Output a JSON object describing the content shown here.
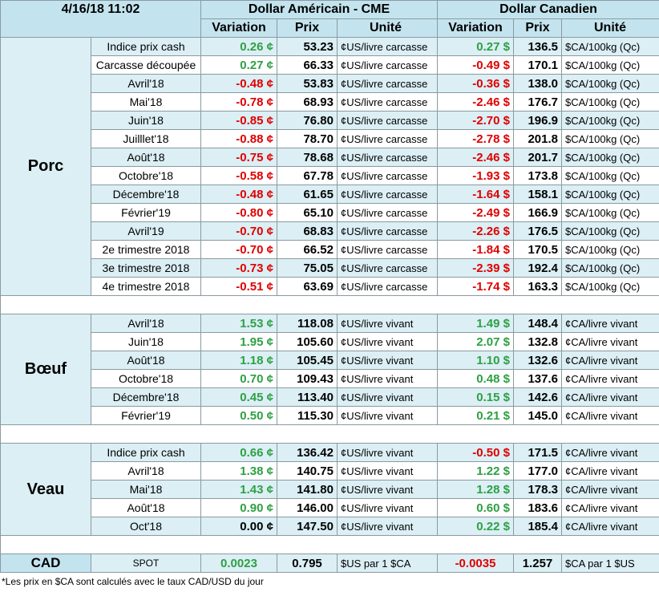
{
  "header": {
    "timestamp": "4/16/18 11:02",
    "us_title": "Dollar Américain - CME",
    "ca_title": "Dollar Canadien",
    "columns": [
      "Variation",
      "Prix",
      "Unité",
      "Variation",
      "Prix",
      "Unité"
    ]
  },
  "sections": [
    {
      "name": "Porc",
      "rows": [
        [
          "Indice prix cash",
          "0.26 ¢",
          "53.23",
          "¢US/livre carcasse",
          "0.27 $",
          "136.5",
          "$CA/100kg (Qc)"
        ],
        [
          "Carcasse découpée",
          "0.27 ¢",
          "66.33",
          "¢US/livre carcasse",
          "-0.49 $",
          "170.1",
          "$CA/100kg (Qc)"
        ],
        [
          "Avril'18",
          "-0.48 ¢",
          "53.83",
          "¢US/livre carcasse",
          "-0.36 $",
          "138.0",
          "$CA/100kg (Qc)"
        ],
        [
          "Mai'18",
          "-0.78 ¢",
          "68.93",
          "¢US/livre carcasse",
          "-2.46 $",
          "176.7",
          "$CA/100kg (Qc)"
        ],
        [
          "Juin'18",
          "-0.85 ¢",
          "76.80",
          "¢US/livre carcasse",
          "-2.70 $",
          "196.9",
          "$CA/100kg (Qc)"
        ],
        [
          "Juilllet'18",
          "-0.88 ¢",
          "78.70",
          "¢US/livre carcasse",
          "-2.78 $",
          "201.8",
          "$CA/100kg (Qc)"
        ],
        [
          "Août'18",
          "-0.75 ¢",
          "78.68",
          "¢US/livre carcasse",
          "-2.46 $",
          "201.7",
          "$CA/100kg (Qc)"
        ],
        [
          "Octobre'18",
          "-0.58 ¢",
          "67.78",
          "¢US/livre carcasse",
          "-1.93 $",
          "173.8",
          "$CA/100kg (Qc)"
        ],
        [
          "Décembre'18",
          "-0.48 ¢",
          "61.65",
          "¢US/livre carcasse",
          "-1.64 $",
          "158.1",
          "$CA/100kg (Qc)"
        ],
        [
          "Février'19",
          "-0.80 ¢",
          "65.10",
          "¢US/livre carcasse",
          "-2.49 $",
          "166.9",
          "$CA/100kg (Qc)"
        ],
        [
          "Avril'19",
          "-0.70 ¢",
          "68.83",
          "¢US/livre carcasse",
          "-2.26 $",
          "176.5",
          "$CA/100kg (Qc)"
        ],
        [
          "2e trimestre 2018",
          "-0.70 ¢",
          "66.52",
          "¢US/livre carcasse",
          "-1.84 $",
          "170.5",
          "$CA/100kg (Qc)"
        ],
        [
          "3e trimestre 2018",
          "-0.73 ¢",
          "75.05",
          "¢US/livre carcasse",
          "-2.39 $",
          "192.4",
          "$CA/100kg (Qc)"
        ],
        [
          "4e trimestre 2018",
          "-0.51 ¢",
          "63.69",
          "¢US/livre carcasse",
          "-1.74 $",
          "163.3",
          "$CA/100kg (Qc)"
        ]
      ]
    },
    {
      "name": "Bœuf",
      "rows": [
        [
          "Avril'18",
          "1.53 ¢",
          "118.08",
          "¢US/livre vivant",
          "1.49 $",
          "148.4",
          "¢CA/livre vivant"
        ],
        [
          "Juin'18",
          "1.95 ¢",
          "105.60",
          "¢US/livre vivant",
          "2.07 $",
          "132.8",
          "¢CA/livre vivant"
        ],
        [
          "Août'18",
          "1.18 ¢",
          "105.45",
          "¢US/livre vivant",
          "1.10 $",
          "132.6",
          "¢CA/livre vivant"
        ],
        [
          "Octobre'18",
          "0.70 ¢",
          "109.43",
          "¢US/livre vivant",
          "0.48 $",
          "137.6",
          "¢CA/livre vivant"
        ],
        [
          "Décembre'18",
          "0.45 ¢",
          "113.40",
          "¢US/livre vivant",
          "0.15 $",
          "142.6",
          "¢CA/livre vivant"
        ],
        [
          "Février'19",
          "0.50 ¢",
          "115.30",
          "¢US/livre vivant",
          "0.21 $",
          "145.0",
          "¢CA/livre vivant"
        ]
      ]
    },
    {
      "name": "Veau",
      "rows": [
        [
          "Indice prix cash",
          "0.66 ¢",
          "136.42",
          "¢US/livre vivant",
          "-0.50 $",
          "171.5",
          "¢CA/livre vivant"
        ],
        [
          "Avril'18",
          "1.38 ¢",
          "140.75",
          "¢US/livre vivant",
          "1.22 $",
          "177.0",
          "¢CA/livre vivant"
        ],
        [
          "Mai'18",
          "1.43 ¢",
          "141.80",
          "¢US/livre vivant",
          "1.28 $",
          "178.3",
          "¢CA/livre vivant"
        ],
        [
          "Août'18",
          "0.90 ¢",
          "146.00",
          "¢US/livre vivant",
          "0.60 $",
          "183.6",
          "¢CA/livre vivant"
        ],
        [
          "Oct'18",
          "0.00 ¢",
          "147.50",
          "¢US/livre vivant",
          "0.22 $",
          "185.4",
          "¢CA/livre vivant"
        ]
      ]
    }
  ],
  "cad": {
    "name": "CAD",
    "row": [
      "SPOT",
      "0.0023",
      "0.795",
      "$US par 1 $CA",
      "-0.0035",
      "1.257",
      "$CA par 1 $US"
    ]
  },
  "footnote": "*Les  prix en $CA sont calculés avec le taux CAD/USD du jour"
}
